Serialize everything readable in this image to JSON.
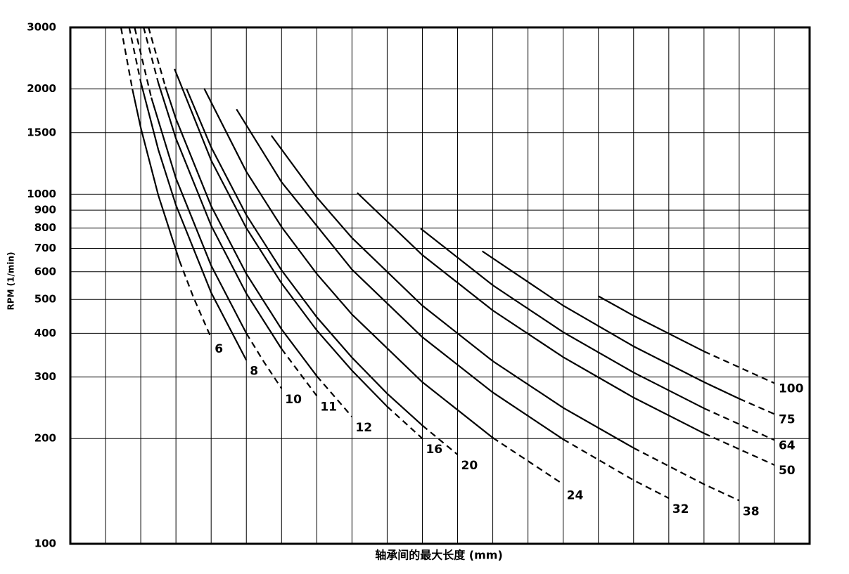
{
  "chart_data": {
    "type": "line",
    "xlabel": "轴承间的最大长度 (mm)",
    "ylabel": "RPM (1/min)",
    "y_scale": "log",
    "grid": true,
    "color": "#000000",
    "xtick_labels": false,
    "xlim": [
      0,
      21
    ],
    "xticks": [
      1,
      2,
      3,
      4,
      5,
      6,
      7,
      8,
      9,
      10,
      11,
      12,
      13,
      14,
      15,
      16,
      17,
      18,
      19,
      20
    ],
    "ylim": [
      100,
      3000
    ],
    "yticks": [
      100,
      200,
      300,
      400,
      500,
      600,
      700,
      800,
      900,
      1000,
      1500,
      2000,
      3000
    ],
    "series": [
      {
        "name": "6",
        "segments": [
          {
            "style": "dashed",
            "x": [
              1.44,
              1.76
            ],
            "values": [
              2990,
              2002
            ]
          },
          {
            "style": "solid",
            "x": [
              1.76,
              2,
              2.5,
              3.1
            ],
            "values": [
              2002,
              1550,
              992,
              645
            ]
          },
          {
            "style": "dashed",
            "x": [
              3.1,
              3.5,
              4
            ],
            "values": [
              645,
              506,
              388
            ]
          }
        ]
      },
      {
        "name": "8",
        "segments": [
          {
            "style": "dashed",
            "x": [
              1.67,
              2
            ],
            "values": [
              3003,
              2094
            ]
          },
          {
            "style": "solid",
            "x": [
              2,
              2.5,
              3,
              4,
              5
            ],
            "values": [
              2094,
              1340,
              931,
              523,
              335
            ]
          }
        ]
      },
      {
        "name": "10",
        "segments": [
          {
            "style": "dashed",
            "x": [
              1.83,
              2.3
            ],
            "values": [
              2986,
              1890
            ]
          },
          {
            "style": "solid",
            "x": [
              2.3,
              3,
              4,
              5
            ],
            "values": [
              1890,
              1111,
              625,
              400
            ]
          },
          {
            "style": "dashed",
            "x": [
              5,
              5.5,
              6
            ],
            "values": [
              400,
              331,
              278
            ]
          }
        ]
      },
      {
        "name": "11",
        "segments": [
          {
            "style": "dashed",
            "x": [
              2.08,
              2.5
            ],
            "values": [
              3005,
              2080
            ]
          },
          {
            "style": "solid",
            "x": [
              2.5,
              3,
              4,
              5,
              6
            ],
            "values": [
              2080,
              1444,
              813,
              520,
              361
            ]
          },
          {
            "style": "dashed",
            "x": [
              6,
              7
            ],
            "values": [
              361,
              265
            ]
          }
        ]
      },
      {
        "name": "12",
        "segments": [
          {
            "style": "dashed",
            "x": [
              2.22,
              2.7
            ],
            "values": [
              3003,
              2030
            ]
          },
          {
            "style": "solid",
            "x": [
              2.7,
              3,
              4,
              5,
              6,
              7
            ],
            "values": [
              2030,
              1644,
              925,
              592,
              411,
              302
            ]
          },
          {
            "style": "dashed",
            "x": [
              7,
              8
            ],
            "values": [
              302,
              231
            ]
          }
        ]
      },
      {
        "name": "16",
        "segments": [
          {
            "style": "solid",
            "x": [
              2.96,
              4,
              5,
              6,
              7,
              8,
              9
            ],
            "values": [
              2283,
              1250,
              800,
              556,
              408,
              313,
              247
            ]
          },
          {
            "style": "dashed",
            "x": [
              9,
              10
            ],
            "values": [
              247,
              200
            ]
          }
        ]
      },
      {
        "name": "20",
        "segments": [
          {
            "style": "solid",
            "x": [
              3.3,
              4,
              5,
              6,
              7,
              8,
              9,
              10
            ],
            "values": [
              2002,
              1363,
              872,
              606,
              445,
              341,
              269,
              218
            ]
          },
          {
            "style": "dashed",
            "x": [
              10,
              11
            ],
            "values": [
              218,
              180
            ]
          }
        ]
      },
      {
        "name": "24",
        "segments": [
          {
            "style": "solid",
            "x": [
              3.8,
              5,
              6,
              7,
              8,
              10,
              12
            ],
            "values": [
              2008,
              1160,
              806,
              592,
              453,
              290,
              201
            ]
          },
          {
            "style": "dashed",
            "x": [
              12,
              14
            ],
            "values": [
              201,
              148
            ]
          }
        ]
      },
      {
        "name": "32",
        "segments": [
          {
            "style": "solid",
            "x": [
              4.72,
              6,
              8,
              10,
              12,
              14
            ],
            "values": [
              1751,
              1083,
              609,
              390,
              271,
              199
            ]
          },
          {
            "style": "dashed",
            "x": [
              14,
              16,
              17
            ],
            "values": [
              199,
              152,
              135
            ]
          }
        ]
      },
      {
        "name": "38",
        "segments": [
          {
            "style": "solid",
            "x": [
              5.71,
              7,
              8,
              10,
              12,
              14,
              16
            ],
            "values": [
              1472,
              980,
              750,
              480,
              333,
              245,
              188
            ]
          },
          {
            "style": "dashed",
            "x": [
              16,
              18,
              19
            ],
            "values": [
              188,
              148,
              133
            ]
          }
        ]
      },
      {
        "name": "50",
        "segments": [
          {
            "style": "solid",
            "x": [
              8.15,
              10,
              12,
              14,
              16,
              18
            ],
            "values": [
              1009,
              670,
              465,
              342,
              262,
              207
            ]
          },
          {
            "style": "dashed",
            "x": [
              18,
              20
            ],
            "values": [
              207,
              168
            ]
          }
        ]
      },
      {
        "name": "64",
        "segments": [
          {
            "style": "solid",
            "x": [
              9.95,
              12,
              14,
              16,
              18
            ],
            "values": [
              798,
              549,
              403,
              309,
              244
            ]
          },
          {
            "style": "dashed",
            "x": [
              18,
              20
            ],
            "values": [
              244,
              198
            ]
          }
        ]
      },
      {
        "name": "75",
        "segments": [
          {
            "style": "solid",
            "x": [
              11.7,
              14,
              16,
              18,
              19
            ],
            "values": [
              687,
              480,
              367,
              290,
              260
            ]
          },
          {
            "style": "dashed",
            "x": [
              19,
              20
            ],
            "values": [
              260,
              235
            ]
          }
        ]
      },
      {
        "name": "100",
        "segments": [
          {
            "style": "solid",
            "x": [
              15,
              16,
              18
            ],
            "values": [
              511,
              449,
              355
            ]
          },
          {
            "style": "dashed",
            "x": [
              18,
              20
            ],
            "values": [
              355,
              288
            ]
          }
        ]
      }
    ]
  }
}
